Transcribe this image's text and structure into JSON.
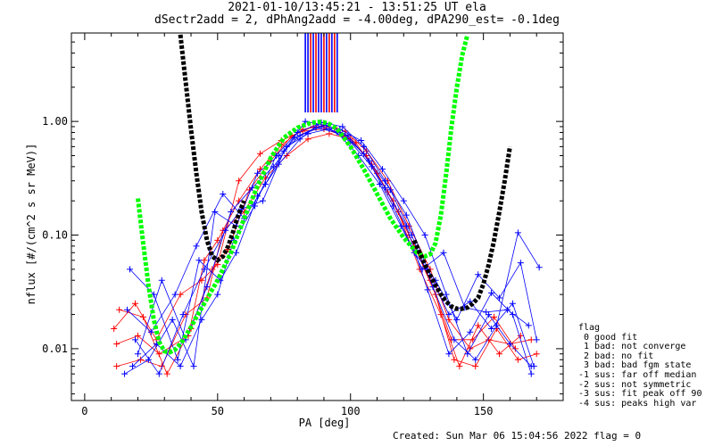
{
  "title_line1": "2021-01-10/13:45:21 - 13:51:25 UT ela",
  "title_line2": "dSectr2add = 2, dPhAng2add = -4.00deg, dPA290_est=  -0.1deg",
  "footer": "Created: Sun Mar 06 15:04:56 2022   flag = 0",
  "legend": {
    "title": "flag",
    "items": [
      " 0 good fit",
      " 1 bad: not converge",
      " 2 bad: no fit",
      " 3 bad: bad fgm state",
      "-1 sus: far off median",
      "-2 sus: not symmetric",
      "-3 sus: fit peak off 90",
      "-4 sus: peaks high var"
    ]
  },
  "colors": {
    "red": "#ff0000",
    "blue": "#0000ff",
    "green": "#00ff00",
    "black": "#000000"
  },
  "chart_data": {
    "type": "line",
    "xlabel": "PA [deg]",
    "ylabel": "nflux [#/(cm^2 s sr MeV)]",
    "xlim": [
      -5,
      180
    ],
    "ylim": [
      0.0035,
      6
    ],
    "yscale": "log",
    "xticks": [
      0,
      50,
      100,
      150
    ],
    "yticks": [
      0.01,
      0.1,
      1.0
    ],
    "ytick_labels": [
      "0.01",
      "0.10",
      "1.00"
    ],
    "series": [
      {
        "color": "red",
        "marker": "+",
        "x": [
          12,
          20,
          28,
          39,
          45,
          50,
          58,
          66,
          74,
          82,
          90,
          98,
          106,
          114,
          122,
          130,
          137,
          145,
          152,
          160,
          168
        ],
        "y": [
          0.011,
          0.013,
          0.009,
          0.013,
          0.06,
          0.09,
          0.2,
          0.38,
          0.62,
          0.85,
          0.92,
          0.82,
          0.55,
          0.3,
          0.12,
          0.05,
          0.018,
          0.01,
          0.012,
          0.011,
          0.012
        ]
      },
      {
        "color": "red",
        "marker": "+",
        "x": [
          12,
          21,
          29,
          38,
          46,
          52,
          60,
          68,
          76,
          84,
          92,
          100,
          108,
          116,
          124,
          132,
          139,
          147,
          155,
          163,
          170
        ],
        "y": [
          0.007,
          0.008,
          0.007,
          0.02,
          0.028,
          0.11,
          0.16,
          0.32,
          0.5,
          0.7,
          0.78,
          0.7,
          0.42,
          0.2,
          0.08,
          0.03,
          0.008,
          0.007,
          0.015,
          0.008,
          0.009
        ]
      },
      {
        "color": "red",
        "marker": "+",
        "x": [
          13,
          22,
          31,
          40,
          48,
          54,
          62,
          70,
          78,
          86,
          94,
          102,
          110,
          118,
          126,
          134,
          141,
          148,
          156,
          164
        ],
        "y": [
          0.022,
          0.019,
          0.006,
          0.015,
          0.05,
          0.075,
          0.25,
          0.45,
          0.75,
          0.9,
          0.88,
          0.65,
          0.35,
          0.16,
          0.05,
          0.02,
          0.007,
          0.016,
          0.009,
          0.013
        ]
      },
      {
        "color": "red",
        "marker": "+",
        "x": [
          11,
          19,
          27,
          36,
          44,
          50,
          58,
          66,
          74,
          82,
          90,
          98,
          106,
          114,
          122,
          130,
          138,
          146,
          154,
          162
        ],
        "y": [
          0.015,
          0.025,
          0.012,
          0.03,
          0.04,
          0.055,
          0.3,
          0.52,
          0.68,
          0.82,
          0.86,
          0.74,
          0.5,
          0.24,
          0.1,
          0.04,
          0.012,
          0.012,
          0.019,
          0.01
        ]
      },
      {
        "color": "blue",
        "marker": "+",
        "x": [
          18,
          27,
          36,
          44,
          50,
          56,
          64,
          72,
          80,
          88,
          96,
          104,
          112,
          120,
          128,
          136,
          144,
          152,
          160,
          168
        ],
        "y": [
          0.007,
          0.011,
          0.007,
          0.018,
          0.03,
          0.09,
          0.18,
          0.5,
          0.8,
          0.95,
          0.85,
          0.68,
          0.38,
          0.2,
          0.1,
          0.03,
          0.009,
          0.02,
          0.011,
          0.007
        ]
      },
      {
        "color": "blue",
        "marker": "+",
        "x": [
          17,
          26,
          35,
          43,
          51,
          57,
          65,
          73,
          81,
          89,
          97,
          105,
          113,
          121,
          129,
          137,
          145,
          153,
          161,
          169
        ],
        "y": [
          0.05,
          0.03,
          0.008,
          0.06,
          0.04,
          0.07,
          0.22,
          0.42,
          0.7,
          0.98,
          0.9,
          0.6,
          0.3,
          0.15,
          0.05,
          0.02,
          0.026,
          0.015,
          0.025,
          0.007
        ]
      },
      {
        "color": "blue",
        "marker": "+",
        "x": [
          19,
          28,
          37,
          45,
          53,
          59,
          67,
          75,
          83,
          91,
          99,
          107,
          115,
          123,
          131,
          139,
          147,
          155,
          163,
          171
        ],
        "y": [
          0.012,
          0.006,
          0.02,
          0.05,
          0.11,
          0.17,
          0.2,
          0.55,
          1.0,
          0.92,
          0.75,
          0.45,
          0.25,
          0.1,
          0.035,
          0.012,
          0.008,
          0.016,
          0.105,
          0.052
        ]
      },
      {
        "color": "blue",
        "marker": "+",
        "x": [
          16,
          25,
          34,
          42,
          52,
          60,
          68,
          76,
          84,
          92,
          100,
          108,
          116,
          124,
          132,
          140,
          148,
          156,
          164,
          170
        ],
        "y": [
          0.022,
          0.014,
          0.03,
          0.08,
          0.23,
          0.14,
          0.28,
          0.6,
          0.78,
          0.86,
          0.66,
          0.4,
          0.18,
          0.07,
          0.04,
          0.018,
          0.045,
          0.028,
          0.057,
          0.012
        ]
      },
      {
        "color": "blue",
        "marker": "+",
        "x": [
          20,
          29,
          38,
          46,
          55,
          63,
          71,
          79,
          87,
          95,
          103,
          111,
          119,
          127,
          135,
          143,
          151,
          159,
          167
        ],
        "y": [
          0.009,
          0.04,
          0.012,
          0.035,
          0.16,
          0.26,
          0.4,
          0.72,
          0.88,
          0.8,
          0.5,
          0.28,
          0.12,
          0.05,
          0.07,
          0.023,
          0.021,
          0.022,
          0.016
        ]
      },
      {
        "color": "blue",
        "marker": "+",
        "x": [
          15,
          24,
          33,
          41,
          49,
          57,
          65,
          73,
          81,
          89,
          97,
          105,
          113,
          121,
          129,
          137,
          145,
          153,
          161,
          168
        ],
        "y": [
          0.006,
          0.008,
          0.018,
          0.007,
          0.16,
          0.12,
          0.35,
          0.5,
          0.75,
          0.9,
          0.78,
          0.52,
          0.26,
          0.12,
          0.033,
          0.009,
          0.014,
          0.031,
          0.02,
          0.006
        ]
      }
    ],
    "fits": [
      {
        "color": "green",
        "label": "fit",
        "x": [
          20,
          22,
          24,
          26,
          28,
          30,
          32,
          34,
          36,
          38,
          40,
          42,
          45,
          50,
          55,
          60,
          65,
          70,
          75,
          80,
          85,
          88,
          90,
          92,
          95,
          100,
          105,
          110,
          115,
          120,
          125,
          128,
          130,
          132,
          134,
          136,
          138,
          140,
          142,
          144
        ],
        "y": [
          0.21,
          0.085,
          0.036,
          0.018,
          0.0115,
          0.0095,
          0.0093,
          0.0098,
          0.011,
          0.013,
          0.0155,
          0.019,
          0.025,
          0.04,
          0.07,
          0.14,
          0.27,
          0.48,
          0.72,
          0.88,
          0.97,
          0.99,
          0.98,
          0.95,
          0.86,
          0.6,
          0.38,
          0.23,
          0.14,
          0.095,
          0.07,
          0.065,
          0.068,
          0.085,
          0.15,
          0.35,
          0.9,
          2.0,
          3.8,
          5.8
        ]
      },
      {
        "color": "black",
        "label": "fit",
        "x": [
          36,
          38,
          40,
          42,
          44,
          46,
          48,
          50,
          52,
          54,
          56,
          58,
          60
        ],
        "y": [
          5.8,
          2.2,
          0.85,
          0.35,
          0.16,
          0.09,
          0.065,
          0.06,
          0.065,
          0.08,
          0.11,
          0.155,
          0.2
        ]
      },
      {
        "color": "black",
        "label": "fit",
        "x": [
          124,
          126,
          128,
          130,
          132,
          134,
          136,
          138,
          140,
          142,
          144,
          146,
          148,
          150,
          152,
          154,
          156,
          158,
          160
        ],
        "y": [
          0.09,
          0.07,
          0.055,
          0.044,
          0.036,
          0.03,
          0.026,
          0.0235,
          0.0225,
          0.0225,
          0.023,
          0.025,
          0.028,
          0.037,
          0.055,
          0.09,
          0.16,
          0.3,
          0.6
        ]
      }
    ],
    "top_bars": {
      "x": [
        83,
        84,
        85,
        86,
        87,
        88,
        89,
        90,
        91,
        92,
        93,
        94,
        95
      ],
      "colors": [
        "blue",
        "blue",
        "red",
        "blue",
        "red",
        "blue",
        "blue",
        "red",
        "blue",
        "red",
        "blue",
        "red",
        "blue"
      ]
    }
  }
}
